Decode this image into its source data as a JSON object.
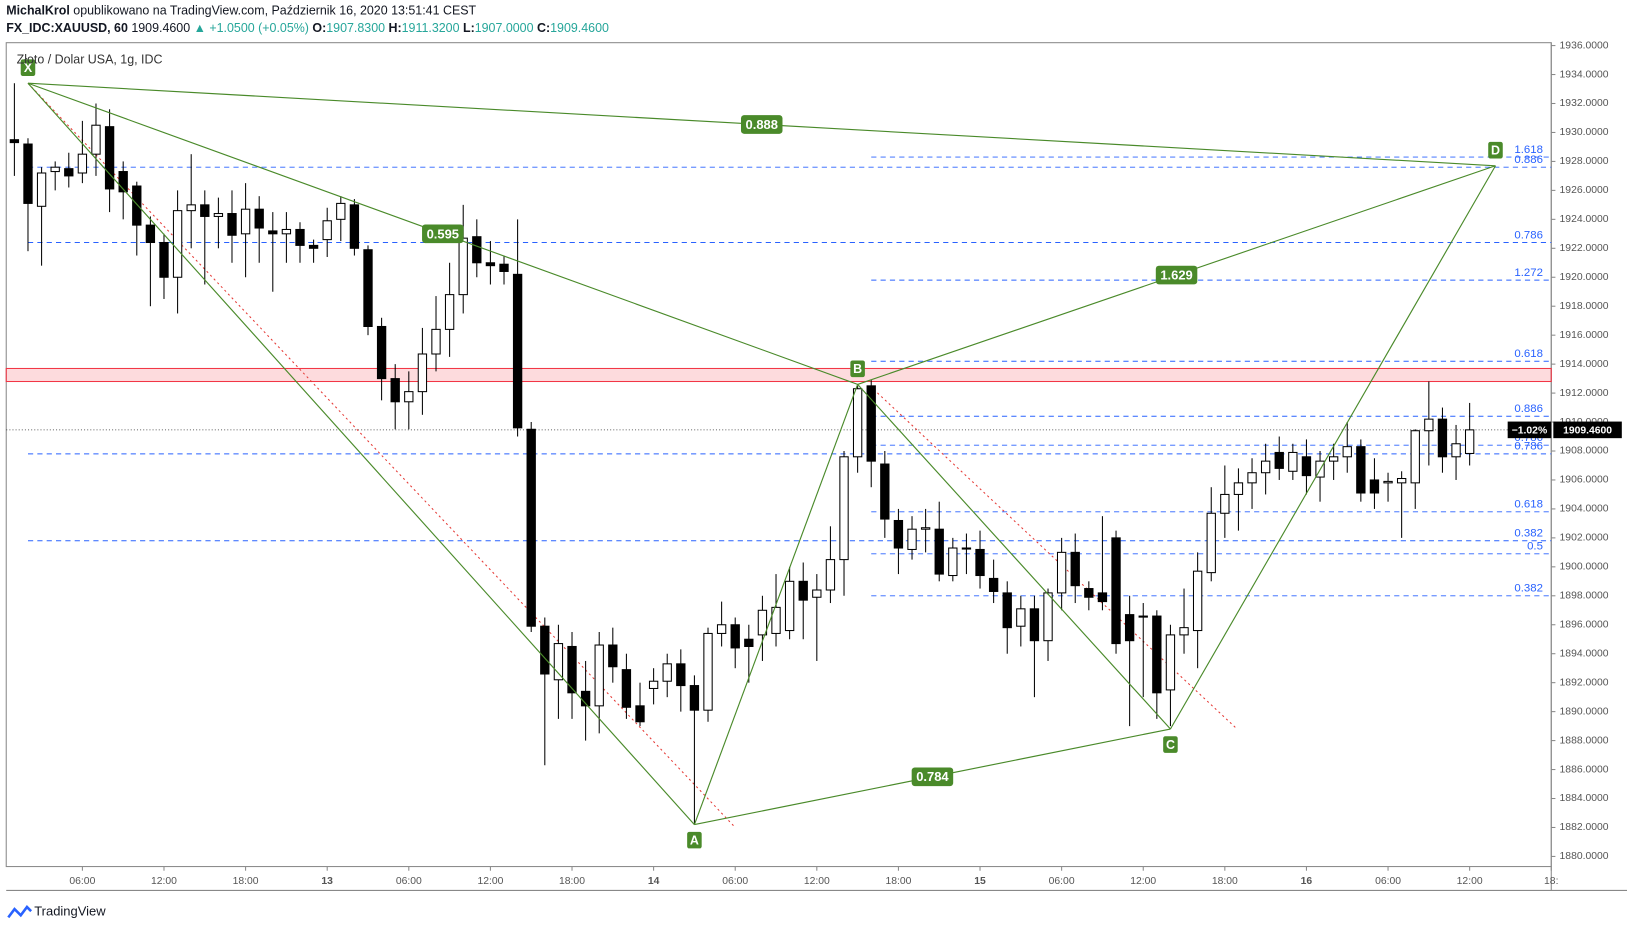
{
  "chart_data": {
    "type": "candlestick",
    "author": "MichalKrol",
    "published": "opublikowano na TradingView.com, Październik 16, 2020 13:51:41 CEST",
    "symbol": "FX_IDC:XAUUSD, 60",
    "last": "1909.4600",
    "change": "▲ +1.0500 (+0.05%)",
    "open_label": "O:",
    "open": "1907.8300",
    "high_label": "H:",
    "high": "1911.3200",
    "low_label": "L:",
    "low": "1907.0000",
    "close_label": "C:",
    "close": "1909.4600",
    "title": "Złoto / Dolar USA, 1g, IDC",
    "price_change_tag": "−1.02%",
    "price_tag": "1909.4600",
    "current_price": 1909.46,
    "footer": "TradingView",
    "up_color": "#ffffff",
    "down_color": "#000000",
    "ohlc": [
      [
        1929.5,
        1933.4,
        1927.0,
        1929.3
      ],
      [
        1929.2,
        1929.6,
        1921.8,
        1925.1
      ],
      [
        1924.9,
        1927.6,
        1920.8,
        1927.2
      ],
      [
        1927.3,
        1928.0,
        1926.0,
        1927.6
      ],
      [
        1927.5,
        1928.6,
        1926.2,
        1927.0
      ],
      [
        1927.2,
        1930.8,
        1926.5,
        1928.5
      ],
      [
        1928.5,
        1932.0,
        1927.0,
        1930.5
      ],
      [
        1930.4,
        1931.6,
        1924.5,
        1926.1
      ],
      [
        1927.3,
        1928.0,
        1924.0,
        1925.9
      ],
      [
        1926.3,
        1926.6,
        1921.5,
        1923.6
      ],
      [
        1923.6,
        1924.2,
        1918.0,
        1922.4
      ],
      [
        1922.4,
        1923.0,
        1918.5,
        1920.0
      ],
      [
        1920.0,
        1926.0,
        1917.5,
        1924.6
      ],
      [
        1924.6,
        1928.5,
        1922.0,
        1925.0
      ],
      [
        1925.0,
        1926.0,
        1919.5,
        1924.2
      ],
      [
        1924.2,
        1925.5,
        1922.0,
        1924.4
      ],
      [
        1924.4,
        1926.0,
        1921.0,
        1922.9
      ],
      [
        1923.0,
        1926.5,
        1920.0,
        1924.7
      ],
      [
        1924.7,
        1925.6,
        1921.0,
        1923.4
      ],
      [
        1923.2,
        1924.5,
        1919.0,
        1923.0
      ],
      [
        1923.0,
        1924.5,
        1921.0,
        1923.3
      ],
      [
        1923.3,
        1923.8,
        1921.0,
        1922.2
      ],
      [
        1922.2,
        1922.6,
        1921.0,
        1922.0
      ],
      [
        1922.6,
        1924.8,
        1921.4,
        1923.9
      ],
      [
        1924.0,
        1925.6,
        1922.5,
        1925.1
      ],
      [
        1925.0,
        1925.4,
        1921.5,
        1922.0
      ],
      [
        1921.9,
        1922.2,
        1916.0,
        1916.6
      ],
      [
        1916.6,
        1917.2,
        1911.5,
        1913.0
      ],
      [
        1913.0,
        1914.0,
        1909.5,
        1911.4
      ],
      [
        1911.4,
        1913.5,
        1909.5,
        1912.1
      ],
      [
        1912.1,
        1916.5,
        1910.5,
        1914.7
      ],
      [
        1914.7,
        1918.7,
        1913.5,
        1916.4
      ],
      [
        1916.4,
        1921.0,
        1914.5,
        1918.8
      ],
      [
        1918.8,
        1925.0,
        1917.5,
        1922.7
      ],
      [
        1922.8,
        1924.0,
        1920.0,
        1921.0
      ],
      [
        1921.0,
        1922.5,
        1919.5,
        1920.8
      ],
      [
        1920.9,
        1921.5,
        1919.5,
        1920.4
      ],
      [
        1920.2,
        1924.0,
        1909.0,
        1909.6
      ],
      [
        1909.5,
        1910.0,
        1895.5,
        1895.9
      ],
      [
        1895.9,
        1896.5,
        1886.3,
        1892.6
      ],
      [
        1892.2,
        1896.0,
        1889.5,
        1894.7
      ],
      [
        1894.5,
        1895.5,
        1889.5,
        1891.3
      ],
      [
        1891.4,
        1893.5,
        1888.0,
        1890.4
      ],
      [
        1890.4,
        1895.5,
        1888.5,
        1894.6
      ],
      [
        1894.6,
        1895.8,
        1892.0,
        1893.1
      ],
      [
        1892.9,
        1894.0,
        1889.5,
        1890.3
      ],
      [
        1890.4,
        1892.0,
        1889.0,
        1889.3
      ],
      [
        1891.6,
        1893.0,
        1890.5,
        1892.1
      ],
      [
        1892.1,
        1894.0,
        1891.0,
        1893.3
      ],
      [
        1893.3,
        1894.3,
        1890.0,
        1891.8
      ],
      [
        1891.8,
        1892.5,
        1882.2,
        1890.1
      ],
      [
        1890.1,
        1895.8,
        1889.3,
        1895.4
      ],
      [
        1895.4,
        1897.6,
        1894.5,
        1896.0
      ],
      [
        1896.0,
        1896.5,
        1893.0,
        1894.4
      ],
      [
        1895.0,
        1896.0,
        1892.0,
        1894.5
      ],
      [
        1895.3,
        1898.0,
        1893.5,
        1897.0
      ],
      [
        1895.4,
        1899.5,
        1894.5,
        1897.2
      ],
      [
        1895.6,
        1900.0,
        1895.0,
        1899.0
      ],
      [
        1899.0,
        1900.3,
        1895.0,
        1897.7
      ],
      [
        1897.9,
        1899.5,
        1893.5,
        1898.4
      ],
      [
        1898.4,
        1902.8,
        1897.5,
        1900.5
      ],
      [
        1900.5,
        1908.0,
        1898.0,
        1907.6
      ],
      [
        1907.6,
        1912.5,
        1906.5,
        1912.3
      ],
      [
        1912.5,
        1912.9,
        1905.5,
        1907.3
      ],
      [
        1907.1,
        1908.0,
        1902.0,
        1903.3
      ],
      [
        1903.2,
        1904.0,
        1899.5,
        1901.3
      ],
      [
        1901.2,
        1903.5,
        1900.5,
        1902.6
      ],
      [
        1902.6,
        1904.0,
        1901.0,
        1902.7
      ],
      [
        1902.6,
        1904.5,
        1899.0,
        1899.5
      ],
      [
        1899.4,
        1902.0,
        1899.0,
        1901.3
      ],
      [
        1901.3,
        1902.3,
        1899.5,
        1901.3
      ],
      [
        1901.2,
        1902.5,
        1898.5,
        1899.4
      ],
      [
        1899.2,
        1900.5,
        1897.5,
        1898.3
      ],
      [
        1898.2,
        1899.0,
        1894.0,
        1895.8
      ],
      [
        1895.9,
        1898.0,
        1894.5,
        1897.1
      ],
      [
        1897.1,
        1898.0,
        1891.0,
        1894.9
      ],
      [
        1894.9,
        1898.5,
        1893.5,
        1898.2
      ],
      [
        1898.2,
        1902.0,
        1897.0,
        1901.0
      ],
      [
        1901.0,
        1902.3,
        1897.5,
        1898.7
      ],
      [
        1898.5,
        1899.0,
        1897.0,
        1897.9
      ],
      [
        1898.2,
        1903.5,
        1897.0,
        1897.6
      ],
      [
        1902.0,
        1902.5,
        1894.0,
        1894.7
      ],
      [
        1896.7,
        1898.0,
        1889.0,
        1894.9
      ],
      [
        1896.6,
        1897.5,
        1891.0,
        1896.6
      ],
      [
        1896.6,
        1897.0,
        1889.5,
        1891.3
      ],
      [
        1891.5,
        1896.0,
        1889.0,
        1895.3
      ],
      [
        1895.3,
        1898.5,
        1894.0,
        1895.8
      ],
      [
        1895.6,
        1901.0,
        1893.0,
        1899.7
      ],
      [
        1899.6,
        1905.5,
        1899.0,
        1903.7
      ],
      [
        1903.7,
        1907.0,
        1902.0,
        1905.0
      ],
      [
        1905.0,
        1906.8,
        1902.5,
        1905.8
      ],
      [
        1905.8,
        1907.5,
        1904.0,
        1906.5
      ],
      [
        1906.5,
        1908.5,
        1905.0,
        1907.3
      ],
      [
        1907.9,
        1909.0,
        1906.0,
        1906.8
      ],
      [
        1906.6,
        1908.5,
        1906.0,
        1907.9
      ],
      [
        1907.6,
        1908.8,
        1905.0,
        1906.3
      ],
      [
        1906.2,
        1908.0,
        1904.5,
        1907.3
      ],
      [
        1907.3,
        1908.5,
        1906.0,
        1907.6
      ],
      [
        1907.6,
        1910.0,
        1906.5,
        1908.3
      ],
      [
        1908.3,
        1908.8,
        1904.5,
        1905.1
      ],
      [
        1906.0,
        1907.5,
        1904.0,
        1905.1
      ],
      [
        1905.8,
        1906.5,
        1904.5,
        1905.9
      ],
      [
        1905.8,
        1906.6,
        1902.0,
        1906.1
      ],
      [
        1905.8,
        1909.5,
        1904.0,
        1909.4
      ],
      [
        1909.4,
        1912.8,
        1907.0,
        1910.2
      ],
      [
        1910.2,
        1911.0,
        1906.5,
        1907.6
      ],
      [
        1907.6,
        1909.8,
        1906.0,
        1908.5
      ],
      [
        1907.83,
        1911.32,
        1907.0,
        1909.46
      ]
    ],
    "xlim": [
      -0.6,
      113
    ],
    "xticks": [
      {
        "value": 5,
        "label": "06:00"
      },
      {
        "value": 11,
        "label": "12:00"
      },
      {
        "value": 17,
        "label": "18:00"
      },
      {
        "value": 23,
        "label": "13"
      },
      {
        "value": 29,
        "label": "06:00"
      },
      {
        "value": 35,
        "label": "12:00"
      },
      {
        "value": 41,
        "label": "18:00"
      },
      {
        "value": 47,
        "label": "14"
      },
      {
        "value": 53,
        "label": "06:00"
      },
      {
        "value": 59,
        "label": "12:00"
      },
      {
        "value": 65,
        "label": "18:00"
      },
      {
        "value": 71,
        "label": "15"
      },
      {
        "value": 77,
        "label": "06:00"
      },
      {
        "value": 83,
        "label": "12:00"
      },
      {
        "value": 89,
        "label": "18:00"
      },
      {
        "value": 95,
        "label": "16"
      },
      {
        "value": 101,
        "label": "06:00"
      },
      {
        "value": 107,
        "label": "12:00"
      },
      {
        "value": 113,
        "label": "18:"
      }
    ],
    "ylim": [
      1879.3,
      1936.2
    ],
    "yticks": [
      {
        "value": 1880,
        "label": "1880.0000"
      },
      {
        "value": 1882,
        "label": "1882.0000"
      },
      {
        "value": 1884,
        "label": "1884.0000"
      },
      {
        "value": 1886,
        "label": "1886.0000"
      },
      {
        "value": 1888,
        "label": "1888.0000"
      },
      {
        "value": 1890,
        "label": "1890.0000"
      },
      {
        "value": 1892,
        "label": "1892.0000"
      },
      {
        "value": 1894,
        "label": "1894.0000"
      },
      {
        "value": 1896,
        "label": "1896.0000"
      },
      {
        "value": 1898,
        "label": "1898.0000"
      },
      {
        "value": 1900,
        "label": "1900.0000"
      },
      {
        "value": 1902,
        "label": "1902.0000"
      },
      {
        "value": 1904,
        "label": "1904.0000"
      },
      {
        "value": 1906,
        "label": "1906.0000"
      },
      {
        "value": 1908,
        "label": "1908.0000"
      },
      {
        "value": 1910,
        "label": "1910.0000"
      },
      {
        "value": 1912,
        "label": "1912.0000"
      },
      {
        "value": 1914,
        "label": "1914.0000"
      },
      {
        "value": 1916,
        "label": "1916.0000"
      },
      {
        "value": 1918,
        "label": "1918.0000"
      },
      {
        "value": 1920,
        "label": "1920.0000"
      },
      {
        "value": 1922,
        "label": "1922.0000"
      },
      {
        "value": 1924,
        "label": "1924.0000"
      },
      {
        "value": 1926,
        "label": "1926.0000"
      },
      {
        "value": 1928,
        "label": "1928.0000"
      },
      {
        "value": 1930,
        "label": "1930.0000"
      },
      {
        "value": 1932,
        "label": "1932.0000"
      },
      {
        "value": 1934,
        "label": "1934.0000"
      },
      {
        "value": 1936,
        "label": "1936.0000"
      }
    ],
    "zone": {
      "color": "#f23645",
      "low": 1912.8,
      "high": 1913.7
    },
    "fib_color": "#2962ff",
    "fib_levels": [
      {
        "label": "1.618",
        "value": 1928.3,
        "from": 63
      },
      {
        "label": "0.886",
        "value": 1927.6,
        "from": 1
      },
      {
        "label": "0.786",
        "value": 1922.4,
        "from": 1
      },
      {
        "label": "1.272",
        "value": 1919.8,
        "from": 63
      },
      {
        "label": "0.618",
        "value": 1914.2,
        "from": 63
      },
      {
        "label": "0.886",
        "value": 1910.4,
        "from": 63
      },
      {
        "label": "0.786",
        "value": 1908.4,
        "from": 63
      },
      {
        "label": "0.786",
        "value": 1907.8,
        "from": 1
      },
      {
        "label": "0.618",
        "value": 1903.8,
        "from": 63
      },
      {
        "label": "0.382",
        "value": 1901.8,
        "from": 1
      },
      {
        "label": "0.5",
        "value": 1900.9,
        "from": 63
      },
      {
        "label": "0.382",
        "value": 1898.0,
        "from": 63
      }
    ],
    "pattern_color": "#4a8a2a",
    "points": [
      {
        "label": "X",
        "x": 1,
        "y": 1933.4
      },
      {
        "label": "A",
        "x": 50,
        "y": 1882.2
      },
      {
        "label": "B",
        "x": 62,
        "y": 1912.6
      },
      {
        "label": "C",
        "x": 85,
        "y": 1888.8
      },
      {
        "label": "D",
        "x": 108.9,
        "y": 1927.7
      }
    ],
    "legs": [
      [
        0,
        1
      ],
      [
        1,
        2
      ],
      [
        2,
        3
      ],
      [
        3,
        4
      ],
      [
        0,
        2
      ],
      [
        2,
        4
      ],
      [
        1,
        3
      ],
      [
        0,
        4
      ]
    ],
    "ratios": [
      {
        "label": "0.888",
        "from": 0,
        "to": 4
      },
      {
        "label": "0.595",
        "from": 0,
        "to": 2
      },
      {
        "label": "1.629",
        "from": 2,
        "to": 4
      },
      {
        "label": "0.784",
        "from": 1,
        "to": 3
      }
    ],
    "red_lines": [
      {
        "x1": 1,
        "y1": 1933.4,
        "x2": 52.9,
        "y2": 1882.1
      },
      {
        "x1": 62.9,
        "y1": 1912.5,
        "x2": 89.9,
        "y2": 1888.8
      }
    ]
  }
}
